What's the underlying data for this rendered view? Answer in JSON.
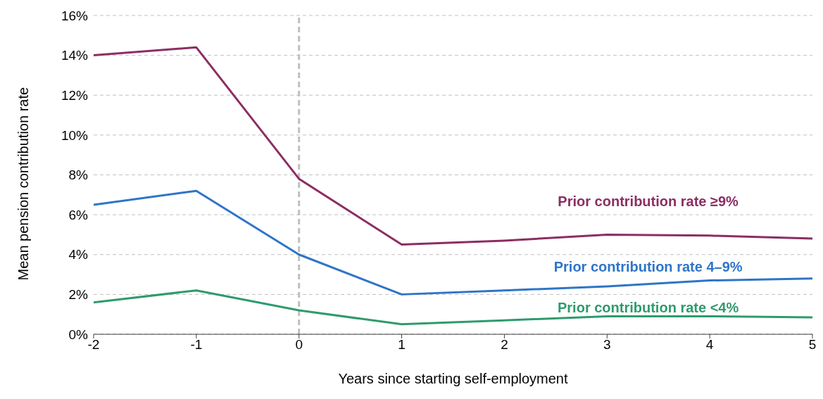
{
  "chart_data": {
    "type": "line",
    "xlabel": "Years since starting self-employment",
    "ylabel": "Mean pension contribution rate",
    "x": [
      -2,
      -1,
      0,
      1,
      2,
      3,
      4,
      5
    ],
    "series": [
      {
        "name": "Prior contribution rate ≥9%",
        "color": "#8b2e62",
        "values": [
          14.0,
          14.4,
          7.8,
          4.5,
          4.7,
          5.0,
          4.95,
          4.8
        ]
      },
      {
        "name": "Prior contribution rate 4–9%",
        "color": "#2e75c8",
        "values": [
          6.5,
          7.2,
          4.0,
          2.0,
          2.2,
          2.4,
          2.7,
          2.8
        ]
      },
      {
        "name": "Prior contribution rate <4%",
        "color": "#2e9b6e",
        "values": [
          1.6,
          2.2,
          1.2,
          0.5,
          0.7,
          0.9,
          0.9,
          0.85
        ]
      }
    ],
    "xlim": [
      -2,
      5
    ],
    "xticks": [
      -2,
      -1,
      0,
      1,
      2,
      3,
      4,
      5
    ],
    "ylim": [
      0,
      16
    ],
    "yticks": [
      {
        "value": 0,
        "label": "0%"
      },
      {
        "value": 2,
        "label": "2%"
      },
      {
        "value": 4,
        "label": "4%"
      },
      {
        "value": 6,
        "label": "6%"
      },
      {
        "value": 8,
        "label": "8%"
      },
      {
        "value": 10,
        "label": "10%"
      },
      {
        "value": 12,
        "label": "12%"
      },
      {
        "value": 14,
        "label": "14%"
      },
      {
        "value": 16,
        "label": "16%"
      }
    ],
    "grid": "y",
    "legend": false,
    "marker": "none",
    "line_style": "solid",
    "ref_lines": [
      {
        "axis": "x",
        "value": 0,
        "label": null,
        "color": "#bfbfbf",
        "line_style": "dashed"
      }
    ]
  }
}
